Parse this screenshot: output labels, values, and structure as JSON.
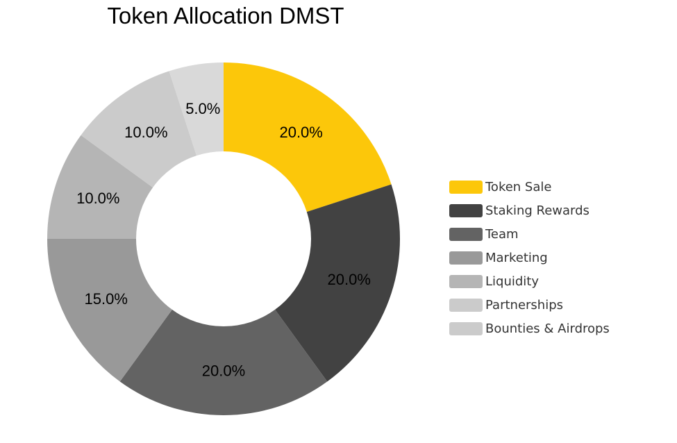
{
  "chart_data": {
    "type": "pie",
    "style": "donut",
    "title": "Token Allocation DMST",
    "categories": [
      "Token Sale",
      "Staking Rewards",
      "Team",
      "Marketing",
      "Liquidity",
      "Partnerships",
      "Bounties & Airdrops"
    ],
    "values": [
      20.0,
      20.0,
      20.0,
      15.0,
      10.0,
      10.0,
      5.0
    ],
    "data_labels": [
      "20.0%",
      "20.0%",
      "20.0%",
      "15.0%",
      "10.0%",
      "10.0%",
      "5.0%"
    ],
    "colors": [
      "#fcc70a",
      "#424242",
      "#636363",
      "#999999",
      "#b5b5b5",
      "#cbcbcb",
      "#d9d9d9"
    ],
    "legend_colors": [
      "#fcc70a",
      "#424242",
      "#636363",
      "#999999",
      "#b5b5b5",
      "#cbcbcb",
      "#cbcbcb"
    ],
    "start_angle": "12 o'clock",
    "direction": "clockwise",
    "legend_position": "right"
  }
}
